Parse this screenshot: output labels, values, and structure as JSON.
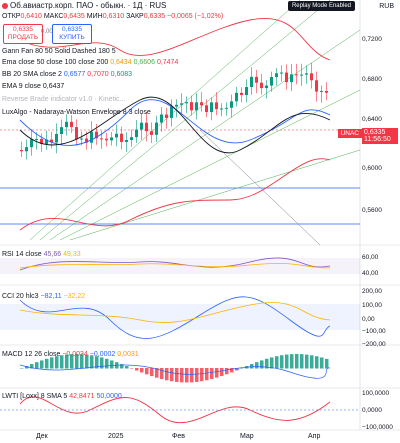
{
  "header": {
    "title": "Об.авиастр.корп. ПАО - обыкн. · 1Д · RUS",
    "currency": "RUB",
    "replay_badge": "Replay Mode Enabled"
  },
  "ohlc": {
    "o_label": "ОТКР",
    "o": "0,6410",
    "h_label": "МАКС",
    "h": "0,6435",
    "l_label": "МИН",
    "l": "0,6310",
    "c_label": "ЗАКР",
    "c": "0,6335",
    "change": "−0,0065 (−1,02%)"
  },
  "trade": {
    "sell_price": "0,6335",
    "sell_label": "ПРОДАТЬ",
    "spread": "0,0000",
    "buy_price": "0,6335",
    "buy_label": "КУПИТЬ"
  },
  "indicators": [
    {
      "name": "Gann Fan 80 50 Solid Dashed 180 5",
      "values": []
    },
    {
      "name": "Ema close 50 close 100 close 200",
      "values": [
        "0,6434",
        "0,6606",
        "0,7474"
      ],
      "colors": [
        "#ff9800",
        "#4caf50",
        "#f23645"
      ]
    },
    {
      "name": "BB 20 SMA close 2",
      "values": [
        "0,6577",
        "0,7070",
        "0,6083"
      ],
      "colors": [
        "#2962ff",
        "#f23645",
        "#089981"
      ]
    },
    {
      "name": "EMA 9 close",
      "values": [
        "0,6437"
      ],
      "colors": [
        "#131722"
      ]
    },
    {
      "name": "Reverse Brade indicator v1.0 · Kinetic...",
      "values": []
    },
    {
      "name": "LuxAlgo - Nadaraya-Watson Envelope 8 3 close",
      "values": []
    }
  ],
  "price_axis": [
    "0,7200",
    "0,6800",
    "0,6400",
    "0,6000",
    "0,5600"
  ],
  "symbol_tag": "UNAC",
  "last_price": "0,6335",
  "countdown": "11:56:50",
  "rsi": {
    "name": "RSI 14 close",
    "values": [
      "45,66",
      "49,33"
    ],
    "axis": [
      "60,00",
      "40,00"
    ]
  },
  "cci": {
    "name": "CCI 20 hlc3",
    "values": [
      "−82,11",
      "−32,22"
    ],
    "axis": [
      "200,00",
      "100,00",
      "0,00",
      "−100,00",
      "−200,00"
    ]
  },
  "macd": {
    "name": "MACD 12 26 close",
    "values": [
      "−0,0034",
      "−0,0002",
      "0,0031"
    ]
  },
  "lwti": {
    "name": "LWTI [Loxx] 8 SMA 5",
    "values": [
      "42,8471",
      "50,0000"
    ],
    "axis": [
      "100,0000",
      "0,0000",
      "−100,0000"
    ]
  },
  "time_axis": [
    "Дек",
    "2025",
    "Фев",
    "Мар",
    "Апр"
  ],
  "colors": {
    "up": "#089981",
    "down": "#f23645",
    "accent": "#2962ff"
  }
}
